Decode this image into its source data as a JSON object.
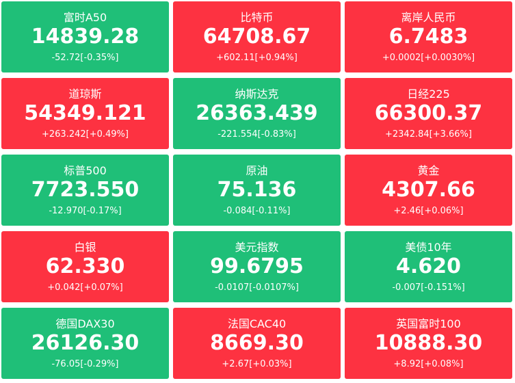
{
  "tiles": [
    {
      "name": "富时A50",
      "price": "14839.28",
      "change": "-52.72[-0.35%]",
      "color": "#1fbf78"
    },
    {
      "name": "比特币",
      "price": "64708.67",
      "change": "+602.11[+0.94%]",
      "color": "#fd3241"
    },
    {
      "name": "离岸人民币",
      "price": "6.7483",
      "change": "+0.0002[+0.0030%]",
      "color": "#fd3241"
    },
    {
      "name": "道琼斯",
      "price": "54349.121",
      "change": "+263.242[+0.49%]",
      "color": "#fd3241"
    },
    {
      "name": "纳斯达克",
      "price": "26363.439",
      "change": "-221.554[-0.83%]",
      "color": "#1fbf78"
    },
    {
      "name": "日经225",
      "price": "66300.37",
      "change": "+2342.84[+3.66%]",
      "color": "#fd3241"
    },
    {
      "name": "标普500",
      "price": "7723.550",
      "change": "-12.970[-0.17%]",
      "color": "#1fbf78"
    },
    {
      "name": "原油",
      "price": "75.136",
      "change": "-0.084[-0.11%]",
      "color": "#1fbf78"
    },
    {
      "name": "黄金",
      "price": "4307.66",
      "change": "+2.46[+0.06%]",
      "color": "#fd3241"
    },
    {
      "name": "白银",
      "price": "62.330",
      "change": "+0.042[+0.07%]",
      "color": "#fd3241"
    },
    {
      "name": "美元指数",
      "price": "99.6795",
      "change": "-0.0107[-0.0107%]",
      "color": "#1fbf78"
    },
    {
      "name": "美债10年",
      "price": "4.620",
      "change": "-0.007[-0.151%]",
      "color": "#1fbf78"
    },
    {
      "name": "德国DAX30",
      "price": "26126.30",
      "change": "-76.05[-0.29%]",
      "color": "#1fbf78"
    },
    {
      "name": "法国CAC40",
      "price": "8669.30",
      "change": "+2.67[+0.03%]",
      "color": "#fd3241"
    },
    {
      "name": "英国富时100",
      "price": "10888.30",
      "change": "+8.92[+0.08%]",
      "color": "#fd3241"
    }
  ]
}
